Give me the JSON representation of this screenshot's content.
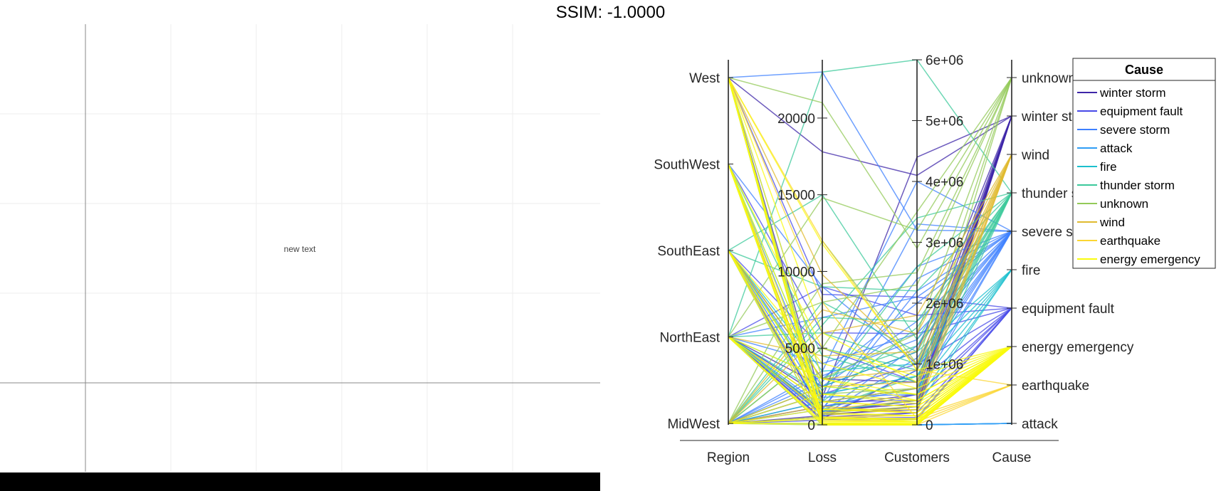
{
  "figure": {
    "title": "SSIM: -1.0000"
  },
  "left_panel": {
    "text": "new text"
  },
  "chart_data": {
    "type": "parallel-coordinates",
    "coordinates": [
      "Region",
      "Loss",
      "Customers",
      "Cause"
    ],
    "axes": {
      "Region": {
        "categories": [
          "MidWest",
          "NorthEast",
          "SouthEast",
          "SouthWest",
          "West"
        ]
      },
      "Loss": {
        "ylim": [
          0,
          23800
        ],
        "ticks": [
          0,
          5000,
          10000,
          15000,
          20000
        ],
        "tick_labels": [
          "0",
          "5000",
          "10000",
          "15000",
          "20000"
        ]
      },
      "Customers": {
        "ylim": [
          0,
          6000000
        ],
        "ticks": [
          0,
          1000000,
          2000000,
          3000000,
          4000000,
          5000000,
          6000000
        ],
        "tick_labels": [
          "0",
          "1e+06",
          "2e+06",
          "3e+06",
          "4e+06",
          "5e+06",
          "6e+06"
        ]
      },
      "Cause": {
        "categories": [
          "attack",
          "earthquake",
          "energy emergency",
          "equipment fault",
          "fire",
          "severe storm",
          "thunder storm",
          "wind",
          "winter storm",
          "unknown"
        ]
      }
    },
    "legend": {
      "title": "Cause",
      "position": "top-right",
      "entries": [
        "winter storm",
        "equipment fault",
        "severe storm",
        "attack",
        "fire",
        "thunder storm",
        "unknown",
        "wind",
        "earthquake",
        "energy emergency"
      ],
      "colors": [
        "#3e26a8",
        "#4749e8",
        "#3d80ff",
        "#2f9df5",
        "#1cbfcd",
        "#3cc99b",
        "#93ca58",
        "#e0ba2f",
        "#fbd633",
        "#f9fb0e"
      ]
    },
    "grid": false,
    "lines": [
      [
        "West",
        17800,
        4100000,
        "winter storm"
      ],
      [
        "West",
        1500,
        600000,
        "winter storm"
      ],
      [
        "SouthWest",
        800,
        400000,
        "winter storm"
      ],
      [
        "NorthEast",
        2500,
        1200000,
        "winter storm"
      ],
      [
        "MidWest",
        1200,
        500000,
        "winter storm"
      ],
      [
        "NorthEast",
        400,
        900000,
        "winter storm"
      ],
      [
        "SouthEast",
        3000,
        700000,
        "winter storm"
      ],
      [
        "MidWest",
        600,
        300000,
        "winter storm"
      ],
      [
        "NorthEast",
        1800,
        4400000,
        "winter storm"
      ],
      [
        "MidWest",
        500,
        200000,
        "winter storm"
      ],
      [
        "NorthEast",
        900,
        350000,
        "winter storm"
      ],
      [
        "SouthEast",
        700,
        250000,
        "winter storm"
      ],
      [
        "West",
        8500,
        2100000,
        "equipment fault"
      ],
      [
        "SouthEast",
        400,
        120000,
        "equipment fault"
      ],
      [
        "NorthEast",
        9000,
        1800000,
        "equipment fault"
      ],
      [
        "MidWest",
        300,
        90000,
        "equipment fault"
      ],
      [
        "SouthWest",
        6000,
        1500000,
        "equipment fault"
      ],
      [
        "MidWest",
        2000,
        1000000,
        "equipment fault"
      ],
      [
        "NorthEast",
        700,
        500000,
        "equipment fault"
      ],
      [
        "SouthEast",
        5000,
        700000,
        "equipment fault"
      ],
      [
        "MidWest",
        1500,
        400000,
        "equipment fault"
      ],
      [
        "NorthEast",
        300,
        200000,
        "equipment fault"
      ],
      [
        "West",
        23000,
        3200000,
        "severe storm"
      ],
      [
        "West",
        3000,
        2000000,
        "severe storm"
      ],
      [
        "SouthWest",
        9000,
        1000000,
        "severe storm"
      ],
      [
        "SouthEast",
        1500,
        3300000,
        "severe storm"
      ],
      [
        "NorthEast",
        4000,
        1500000,
        "severe storm"
      ],
      [
        "MidWest",
        2000,
        800000,
        "severe storm"
      ],
      [
        "MidWest",
        1000,
        2200000,
        "severe storm"
      ],
      [
        "NorthEast",
        7000,
        2100000,
        "severe storm"
      ],
      [
        "SouthEast",
        2500,
        1700000,
        "severe storm"
      ],
      [
        "MidWest",
        3500,
        4000000,
        "severe storm"
      ],
      [
        "NorthEast",
        1200,
        600000,
        "severe storm"
      ],
      [
        "MidWest",
        500,
        900000,
        "severe storm"
      ],
      [
        "SouthEast",
        800,
        1300000,
        "severe storm"
      ],
      [
        "MidWest",
        2800,
        2600000,
        "severe storm"
      ],
      [
        "NorthEast",
        600,
        1100000,
        "severe storm"
      ],
      [
        "SouthWest",
        1800,
        500000,
        "severe storm"
      ],
      [
        "West",
        1000,
        2400000,
        "severe storm"
      ],
      [
        "MidWest",
        3200,
        1400000,
        "severe storm"
      ],
      [
        "MidWest",
        0,
        0,
        "attack"
      ],
      [
        "West",
        0,
        0,
        "attack"
      ],
      [
        "NorthEast",
        0,
        0,
        "attack"
      ],
      [
        "SouthEast",
        0,
        0,
        "attack"
      ],
      [
        "SouthWest",
        0,
        0,
        "attack"
      ],
      [
        "MidWest",
        100,
        1000,
        "attack"
      ],
      [
        "West",
        50,
        0,
        "attack"
      ],
      [
        "NorthEast",
        2000,
        800000,
        "fire"
      ],
      [
        "SouthEast",
        3500,
        1000000,
        "fire"
      ],
      [
        "MidWest",
        1500,
        600000,
        "fire"
      ],
      [
        "West",
        900,
        400000,
        "fire"
      ],
      [
        "SouthWest",
        2500,
        1200000,
        "fire"
      ],
      [
        "NorthEast",
        800,
        300000,
        "fire"
      ],
      [
        "SouthEast",
        15000,
        1400000,
        "thunder storm"
      ],
      [
        "NorthEast",
        23000,
        6000000,
        "thunder storm"
      ],
      [
        "SouthEast",
        9000,
        2200000,
        "thunder storm"
      ],
      [
        "MidWest",
        5000,
        900000,
        "thunder storm"
      ],
      [
        "NorthEast",
        3000,
        1300000,
        "thunder storm"
      ],
      [
        "MidWest",
        7000,
        1700000,
        "thunder storm"
      ],
      [
        "SouthWest",
        4500,
        700000,
        "thunder storm"
      ],
      [
        "MidWest",
        8000,
        1200000,
        "thunder storm"
      ],
      [
        "SouthEast",
        2200,
        2600000,
        "thunder storm"
      ],
      [
        "NorthEast",
        6000,
        1000000,
        "thunder storm"
      ],
      [
        "MidWest",
        2500,
        500000,
        "thunder storm"
      ],
      [
        "NorthEast",
        1500,
        1600000,
        "thunder storm"
      ],
      [
        "MidWest",
        6500,
        3400000,
        "thunder storm"
      ],
      [
        "NorthEast",
        1000,
        800000,
        "thunder storm"
      ],
      [
        "NorthEast",
        14800,
        3200000,
        "unknown"
      ],
      [
        "MidWest",
        5000,
        3500000,
        "unknown"
      ],
      [
        "SouthEast",
        3000,
        1500000,
        "unknown"
      ],
      [
        "West",
        21000,
        2900000,
        "unknown"
      ],
      [
        "MidWest",
        9200,
        2500000,
        "unknown"
      ],
      [
        "NorthEast",
        8000,
        2300000,
        "unknown"
      ],
      [
        "MidWest",
        12000,
        1000000,
        "unknown"
      ],
      [
        "SouthEast",
        2000,
        600000,
        "unknown"
      ],
      [
        "West",
        9800,
        1000000,
        "wind"
      ],
      [
        "NorthEast",
        1500,
        600000,
        "wind"
      ],
      [
        "MidWest",
        6000,
        1800000,
        "wind"
      ],
      [
        "SouthEast",
        1000,
        400000,
        "wind"
      ],
      [
        "MidWest",
        2500,
        700000,
        "wind"
      ],
      [
        "SouthWest",
        800,
        300000,
        "wind"
      ],
      [
        "NorthEast",
        4500,
        1200000,
        "wind"
      ],
      [
        "MidWest",
        7500,
        1500000,
        "wind"
      ],
      [
        "SouthEast",
        3000,
        900000,
        "wind"
      ],
      [
        "MidWest",
        1200,
        200000,
        "wind"
      ],
      [
        "West",
        12000,
        900000,
        "earthquake"
      ],
      [
        "West",
        8000,
        100000,
        "earthquake"
      ],
      [
        "SouthWest",
        300,
        50000,
        "earthquake"
      ],
      [
        "West",
        100,
        0,
        "earthquake"
      ],
      [
        "West",
        500,
        150000,
        "earthquake"
      ],
      [
        "West",
        0,
        0,
        "energy emergency"
      ],
      [
        "West",
        200,
        50000,
        "energy emergency"
      ],
      [
        "West",
        500,
        100000,
        "energy emergency"
      ],
      [
        "West",
        1000,
        200000,
        "energy emergency"
      ],
      [
        "West",
        3000,
        400000,
        "energy emergency"
      ],
      [
        "West",
        6000,
        700000,
        "energy emergency"
      ],
      [
        "West",
        11800,
        900000,
        "energy emergency"
      ],
      [
        "SouthWest",
        0,
        0,
        "energy emergency"
      ],
      [
        "SouthWest",
        300,
        80000,
        "energy emergency"
      ],
      [
        "SouthWest",
        700,
        150000,
        "energy emergency"
      ],
      [
        "SouthWest",
        1500,
        300000,
        "energy emergency"
      ],
      [
        "SouthWest",
        2500,
        500000,
        "energy emergency"
      ],
      [
        "SouthWest",
        5000,
        800000,
        "energy emergency"
      ],
      [
        "SouthEast",
        0,
        0,
        "energy emergency"
      ],
      [
        "SouthEast",
        400,
        100000,
        "energy emergency"
      ],
      [
        "SouthEast",
        1000,
        250000,
        "energy emergency"
      ],
      [
        "SouthEast",
        2000,
        400000,
        "energy emergency"
      ],
      [
        "SouthEast",
        4000,
        600000,
        "energy emergency"
      ],
      [
        "NorthEast",
        0,
        0,
        "energy emergency"
      ],
      [
        "NorthEast",
        200,
        50000,
        "energy emergency"
      ],
      [
        "NorthEast",
        800,
        150000,
        "energy emergency"
      ],
      [
        "NorthEast",
        1500,
        300000,
        "energy emergency"
      ],
      [
        "NorthEast",
        3000,
        500000,
        "energy emergency"
      ],
      [
        "MidWest",
        0,
        0,
        "energy emergency"
      ],
      [
        "MidWest",
        100,
        30000,
        "energy emergency"
      ],
      [
        "MidWest",
        400,
        100000,
        "energy emergency"
      ],
      [
        "MidWest",
        1000,
        200000,
        "energy emergency"
      ],
      [
        "MidWest",
        2000,
        350000,
        "energy emergency"
      ],
      [
        "MidWest",
        500,
        50000,
        "energy emergency"
      ],
      [
        "NorthEast",
        100,
        20000,
        "energy emergency"
      ],
      [
        "SouthWest",
        50,
        10000,
        "energy emergency"
      ]
    ]
  }
}
